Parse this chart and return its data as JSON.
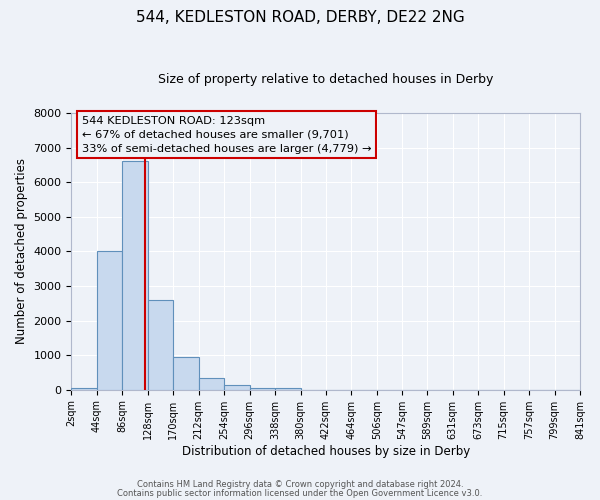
{
  "title": "544, KEDLESTON ROAD, DERBY, DE22 2NG",
  "subtitle": "Size of property relative to detached houses in Derby",
  "xlabel": "Distribution of detached houses by size in Derby",
  "ylabel": "Number of detached properties",
  "bar_color": "#c8d9ee",
  "bar_edge_color": "#6090bb",
  "bg_color": "#eef2f8",
  "grid_color": "#ffffff",
  "annotation_box_color": "#cc0000",
  "vline_color": "#cc0000",
  "vline_x": 123,
  "annotation_title": "544 KEDLESTON ROAD: 123sqm",
  "annotation_line1": "← 67% of detached houses are smaller (9,701)",
  "annotation_line2": "33% of semi-detached houses are larger (4,779) →",
  "footer1": "Contains HM Land Registry data © Crown copyright and database right 2024.",
  "footer2": "Contains public sector information licensed under the Open Government Licence v3.0.",
  "bin_edges": [
    2,
    44,
    86,
    128,
    170,
    212,
    254,
    296,
    338,
    380,
    422,
    464,
    506,
    547,
    589,
    631,
    673,
    715,
    757,
    799,
    841
  ],
  "bin_counts": [
    60,
    4000,
    6600,
    2600,
    960,
    330,
    130,
    60,
    50,
    5,
    3,
    0,
    0,
    0,
    0,
    0,
    0,
    0,
    0,
    0
  ],
  "ylim": [
    0,
    8000
  ],
  "yticks": [
    0,
    1000,
    2000,
    3000,
    4000,
    5000,
    6000,
    7000,
    8000
  ]
}
